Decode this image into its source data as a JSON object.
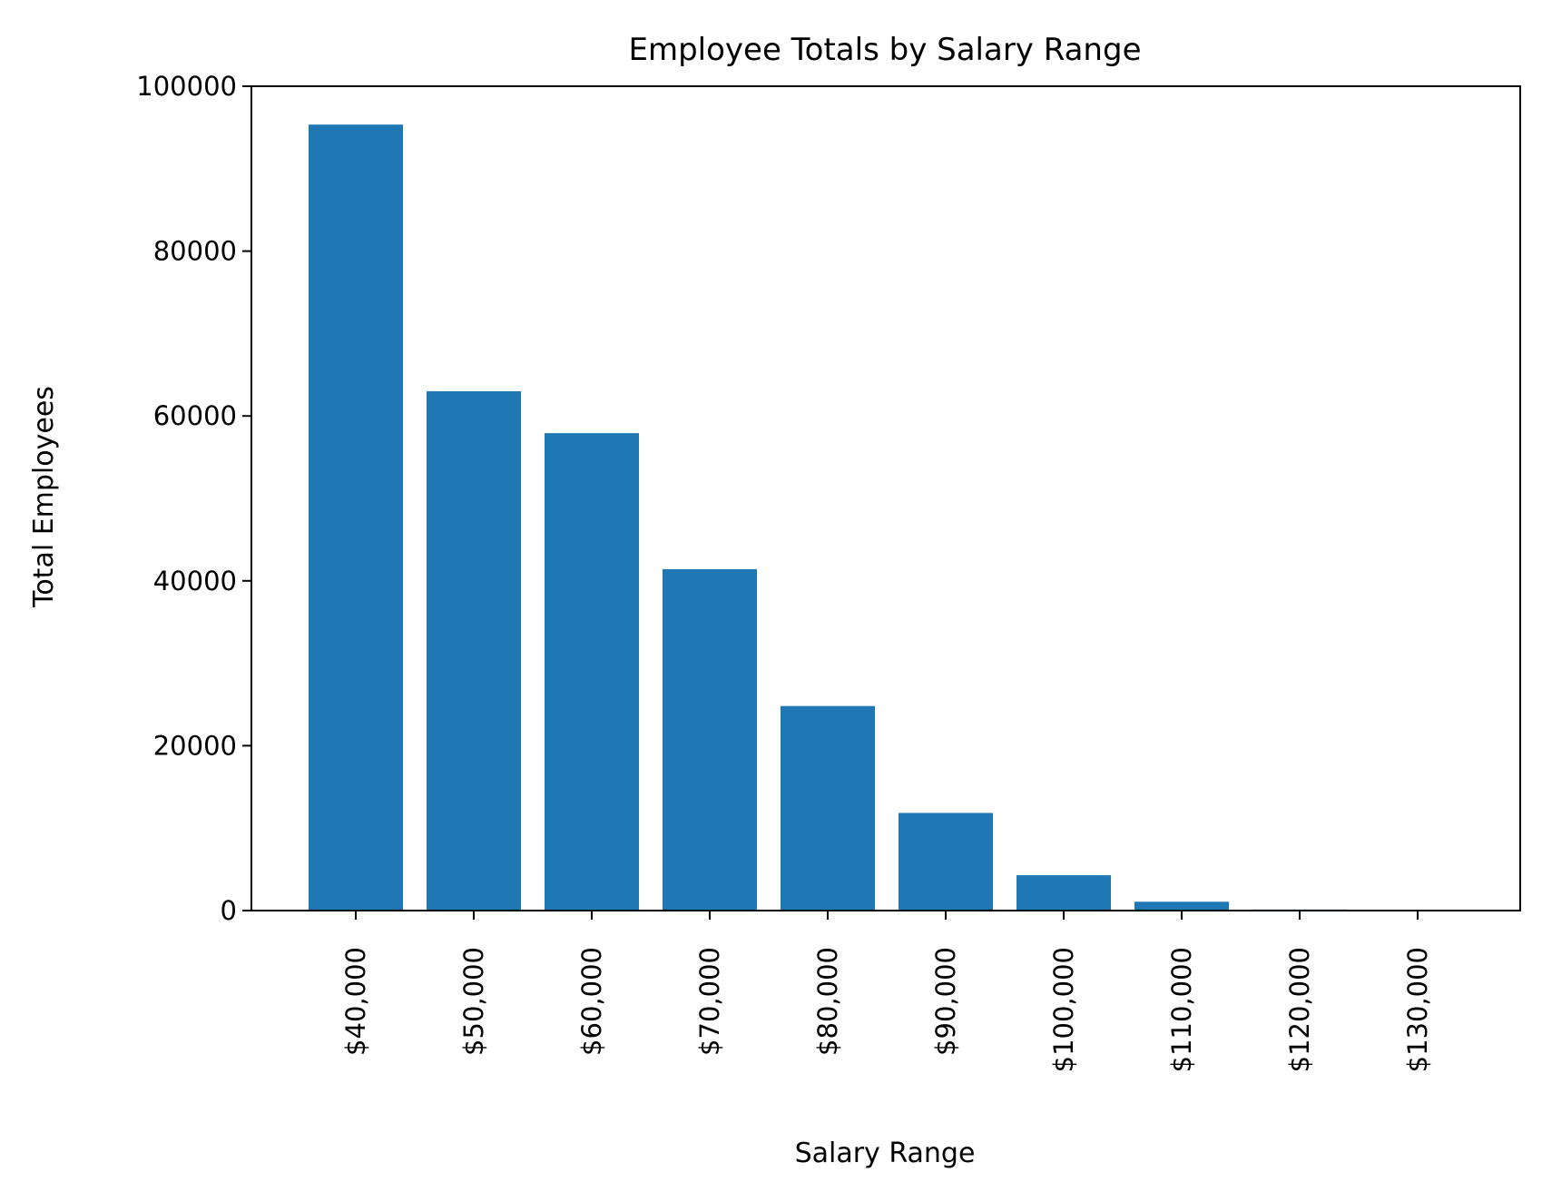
{
  "chart_data": {
    "type": "bar",
    "title": "Employee Totals by Salary Range",
    "xlabel": "Salary Range",
    "ylabel": "Total Employees",
    "categories": [
      "$40,000",
      "$50,000",
      "$60,000",
      "$70,000",
      "$80,000",
      "$90,000",
      "$100,000",
      "$110,000",
      "$120,000",
      "$130,000"
    ],
    "values": [
      95346,
      63001,
      57915,
      41413,
      24814,
      11844,
      4285,
      1069,
      129,
      15
    ],
    "ylim": [
      0,
      100000
    ],
    "yticks": [
      0,
      20000,
      40000,
      60000,
      80000,
      100000
    ],
    "grid": false,
    "legend": "none",
    "bar_color": "#1f77b4"
  }
}
